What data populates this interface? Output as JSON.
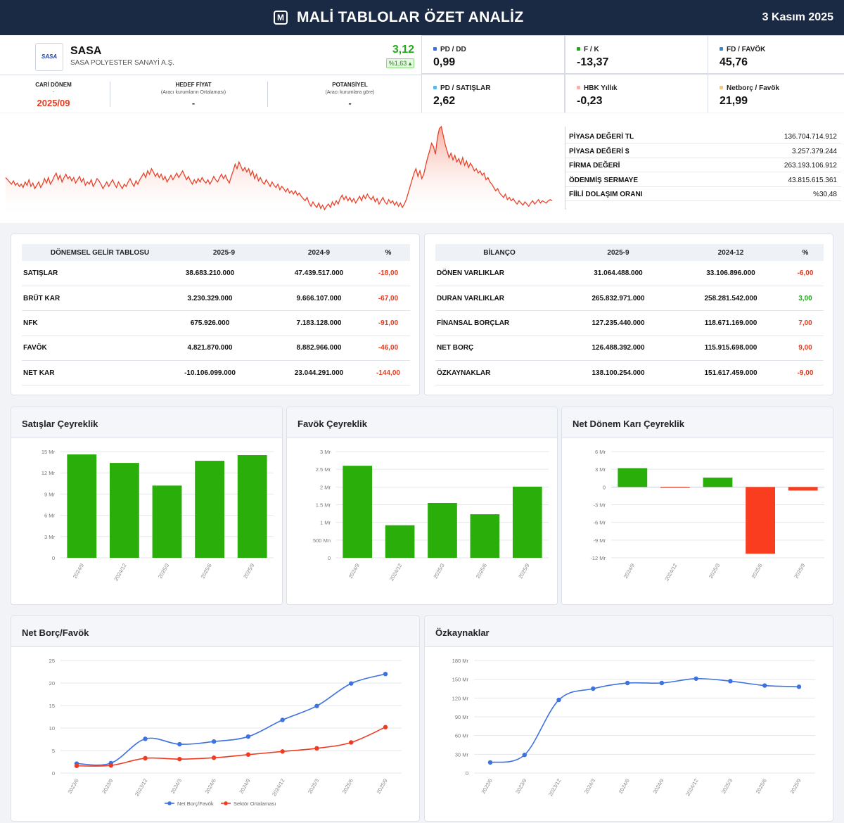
{
  "header": {
    "logo_letter": "M",
    "title": "MALİ TABLOLAR ÖZET ANALİZ",
    "date": "3 Kasım 2025"
  },
  "stock": {
    "logo_text": "SASA",
    "ticker": "SASA",
    "company": "SASA POLYESTER SANAYİ A.Ş.",
    "price": "3,12",
    "change": "%1,63"
  },
  "summary": {
    "current_period_label": "CARİ DÖNEM",
    "current_period_dash": "-",
    "current_period": "2025/09",
    "target_label": "HEDEF FİYAT",
    "target_note": "(Aracı kurumların Ortalaması)",
    "target_value": "-",
    "potential_label": "POTANSİYEL",
    "potential_note": "(Aracı kurumlara göre)",
    "potential_value": "-"
  },
  "metrics": [
    {
      "label": "PD / DD",
      "value": "0,99",
      "color": "#3b6fd9"
    },
    {
      "label": "F / K",
      "value": "-13,37",
      "color": "#22a91a"
    },
    {
      "label": "FD / FAVÖK",
      "value": "45,76",
      "color": "#2c8fd6"
    },
    {
      "label": "PD / SATIŞLAR",
      "value": "2,62",
      "color": "#5bb7e8"
    },
    {
      "label": "HBK Yıllık",
      "value": "-0,23",
      "color": "#f5b2aa"
    },
    {
      "label": "Netborç / Favök",
      "value": "21,99",
      "color": "#f0c983"
    }
  ],
  "price_history": [
    54,
    52,
    50,
    48,
    51,
    47,
    49,
    46,
    48,
    45,
    50,
    47,
    52,
    46,
    49,
    44,
    47,
    50,
    45,
    48,
    53,
    49,
    54,
    48,
    51,
    55,
    58,
    52,
    56,
    50,
    54,
    57,
    53,
    55,
    51,
    54,
    49,
    52,
    55,
    50,
    53,
    47,
    50,
    48,
    52,
    46,
    49,
    53,
    51,
    48,
    44,
    47,
    50,
    46,
    49,
    52,
    48,
    45,
    50,
    47,
    44,
    48,
    46,
    50,
    53,
    49,
    46,
    51,
    48,
    52,
    55,
    58,
    54,
    60,
    57,
    62,
    59,
    55,
    58,
    54,
    57,
    52,
    55,
    50,
    53,
    56,
    52,
    55,
    58,
    54,
    57,
    60,
    56,
    52,
    55,
    51,
    48,
    52,
    49,
    53,
    50,
    54,
    51,
    49,
    52,
    48,
    51,
    55,
    52,
    50,
    54,
    57,
    53,
    56,
    52,
    49,
    55,
    60,
    66,
    62,
    68,
    64,
    60,
    63,
    59,
    62,
    56,
    60,
    53,
    57,
    51,
    54,
    50,
    48,
    52,
    49,
    46,
    50,
    47,
    45,
    48,
    43,
    46,
    44,
    41,
    44,
    40,
    42,
    39,
    42,
    38,
    40,
    37,
    35,
    33,
    36,
    31,
    28,
    32,
    29,
    27,
    31,
    26,
    29,
    25,
    28,
    30,
    27,
    32,
    29,
    33,
    30,
    35,
    38,
    34,
    37,
    33,
    36,
    32,
    35,
    31,
    34,
    37,
    33,
    38,
    35,
    39,
    36,
    34,
    37,
    32,
    35,
    30,
    33,
    36,
    32,
    30,
    34,
    31,
    33,
    29,
    32,
    28,
    31,
    27,
    30,
    34,
    40,
    46,
    52,
    58,
    62,
    55,
    60,
    53,
    57,
    65,
    72,
    78,
    85,
    82,
    75,
    90,
    98,
    100,
    92,
    84,
    78,
    72,
    76,
    70,
    74,
    68,
    71,
    66,
    72,
    65,
    69,
    63,
    67,
    64,
    60,
    62,
    58,
    60,
    56,
    58,
    52,
    54,
    50,
    48,
    45,
    42,
    44,
    40,
    38,
    36,
    39,
    34,
    36,
    33,
    35,
    32,
    30,
    33,
    31,
    29,
    32,
    30,
    28,
    31,
    33,
    30,
    32,
    34,
    31,
    33,
    32,
    31,
    33,
    34,
    33
  ],
  "market": [
    {
      "label": "PİYASA DEĞERİ TL",
      "value": "136.704.714.912"
    },
    {
      "label": "PİYASA DEĞERİ $",
      "value": "3.257.379.244"
    },
    {
      "label": "FİRMA DEĞERİ",
      "value": "263.193.106.912"
    },
    {
      "label": "ÖDENMİŞ SERMAYE",
      "value": "43.815.615.361"
    },
    {
      "label": "FİİLİ DOLAŞIM ORANI",
      "value": "%30,48"
    }
  ],
  "income": {
    "headers": [
      "DÖNEMSEL GELİR TABLOSU",
      "2025-9",
      "2024-9",
      "%"
    ],
    "rows": [
      {
        "label": "SATIŞLAR",
        "a": "38.683.210.000",
        "b": "47.439.517.000",
        "pct": "-18,00"
      },
      {
        "label": "BRÜT KAR",
        "a": "3.230.329.000",
        "b": "9.666.107.000",
        "pct": "-67,00"
      },
      {
        "label": "NFK",
        "a": "675.926.000",
        "b": "7.183.128.000",
        "pct": "-91,00"
      },
      {
        "label": "FAVÖK",
        "a": "4.821.870.000",
        "b": "8.882.966.000",
        "pct": "-46,00"
      },
      {
        "label": "NET KAR",
        "a": "-10.106.099.000",
        "b": "23.044.291.000",
        "pct": "-144,00"
      }
    ]
  },
  "balance": {
    "headers": [
      "BİLANÇO",
      "2025-9",
      "2024-12",
      "%"
    ],
    "rows": [
      {
        "label": "DÖNEN VARLIKLAR",
        "a": "31.064.488.000",
        "b": "33.106.896.000",
        "pct": "-6,00"
      },
      {
        "label": "DURAN VARLIKLAR",
        "a": "265.832.971.000",
        "b": "258.281.542.000",
        "pct": "3,00"
      },
      {
        "label": "FİNANSAL BORÇLAR",
        "a": "127.235.440.000",
        "b": "118.671.169.000",
        "pct": "7,00"
      },
      {
        "label": "NET BORÇ",
        "a": "126.488.392.000",
        "b": "115.915.698.000",
        "pct": "9,00"
      },
      {
        "label": "ÖZKAYNAKLAR",
        "a": "138.100.254.000",
        "b": "151.617.459.000",
        "pct": "-9,00"
      }
    ]
  },
  "chart_titles": {
    "sales": "Satışlar Çeyreklik",
    "ebitda": "Favök Çeyreklik",
    "net": "Net Dönem Karı Çeyreklik",
    "netdebt": "Net Borç/Favök",
    "equity": "Özkaynaklar"
  },
  "chart_data": [
    {
      "id": "sales",
      "type": "bar",
      "title": "Satışlar Çeyreklik",
      "categories": [
        "2024/9",
        "2024/12",
        "2025/3",
        "2025/6",
        "2025/9"
      ],
      "values": [
        14.6,
        13.4,
        10.2,
        13.7,
        14.5
      ],
      "unit": "Mr",
      "ylim": [
        0,
        15
      ],
      "ticks": [
        0,
        3,
        6,
        9,
        12,
        15
      ],
      "tick_labels": [
        "0",
        "3 Mr",
        "6 Mr",
        "9 Mr",
        "12 Mr",
        "15 Mr"
      ],
      "color": "#29ae0a"
    },
    {
      "id": "ebitda",
      "type": "bar",
      "title": "Favök Çeyreklik",
      "categories": [
        "2024/9",
        "2024/12",
        "2025/3",
        "2025/6",
        "2025/9"
      ],
      "values": [
        2.6,
        0.92,
        1.55,
        1.23,
        2.01
      ],
      "unit": "Mr",
      "ylim": [
        0,
        3
      ],
      "ticks": [
        0,
        0.5,
        1,
        1.5,
        2,
        2.5,
        3
      ],
      "tick_labels": [
        "0",
        "500 Mn",
        "1 Mr",
        "1.5 Mr",
        "2 Mr",
        "2.5 Mr",
        "3 Mr"
      ],
      "color": "#29ae0a"
    },
    {
      "id": "net",
      "type": "bar",
      "title": "Net Dönem Karı Çeyreklik",
      "categories": [
        "2024/9",
        "2024/12",
        "2025/3",
        "2025/6",
        "2025/9"
      ],
      "values": [
        3.2,
        -0.15,
        1.6,
        -11.3,
        -0.6
      ],
      "unit": "Mr",
      "ylim": [
        -12,
        6
      ],
      "ticks": [
        -12,
        -9,
        -6,
        -3,
        0,
        3,
        6
      ],
      "tick_labels": [
        "-12 Mr",
        "-9 Mr",
        "-6 Mr",
        "-3 Mr",
        "0",
        "3 Mr",
        "6 Mr"
      ],
      "color": "#29ae0a",
      "neg_color": "#fb3d1f"
    },
    {
      "id": "netdebt",
      "type": "line",
      "title": "Net Borç/Favök",
      "categories": [
        "2023/6",
        "2023/9",
        "2023/12",
        "2024/3",
        "2024/6",
        "2024/9",
        "2024/12",
        "2025/3",
        "2025/6",
        "2025/9"
      ],
      "series": [
        {
          "name": "Net Borç/Favök",
          "values": [
            2.1,
            2.2,
            7.6,
            6.4,
            7.0,
            8.1,
            11.8,
            14.9,
            19.9,
            22.0
          ],
          "color": "#3d72e0"
        },
        {
          "name": "Sektör Ortalaması",
          "values": [
            1.6,
            1.7,
            3.3,
            3.1,
            3.4,
            4.1,
            4.8,
            5.5,
            6.8,
            10.2
          ],
          "color": "#f03b22"
        }
      ],
      "ylim": [
        0,
        25
      ],
      "ticks": [
        0,
        5,
        10,
        15,
        20,
        25
      ],
      "tick_labels": [
        "0",
        "5",
        "10",
        "15",
        "20",
        "25"
      ]
    },
    {
      "id": "equity",
      "type": "line",
      "title": "Özkaynaklar",
      "categories": [
        "2023/6",
        "2023/9",
        "2023/12",
        "2024/3",
        "2024/6",
        "2024/9",
        "2024/12",
        "2025/3",
        "2025/6",
        "2025/9"
      ],
      "series": [
        {
          "name": "Özkaynaklar",
          "values": [
            17,
            29,
            117,
            135,
            144,
            144,
            151,
            147,
            140,
            138
          ],
          "color": "#3d72e0"
        }
      ],
      "ylim": [
        0,
        180
      ],
      "ticks": [
        0,
        30,
        60,
        90,
        120,
        150,
        180
      ],
      "tick_labels": [
        "0",
        "30 Mr",
        "60 Mr",
        "90 Mr",
        "120 Mr",
        "150 Mr",
        "180 Mr"
      ]
    }
  ]
}
